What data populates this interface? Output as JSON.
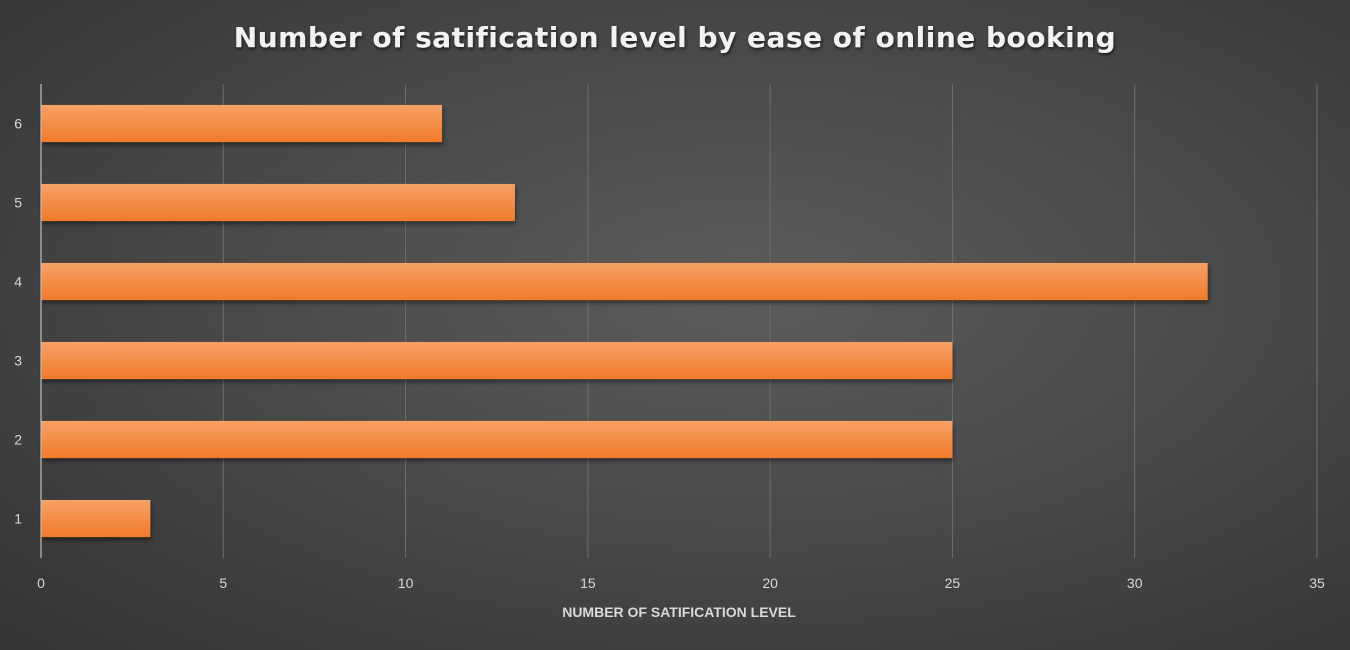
{
  "chart_data": {
    "type": "bar",
    "orientation": "horizontal",
    "title": "Number of satification level by ease of online booking",
    "xlabel": "NUMBER OF SATIFICATION LEVEL",
    "ylabel": "",
    "categories": [
      "1",
      "2",
      "3",
      "4",
      "5",
      "6"
    ],
    "values": [
      3,
      25,
      25,
      32,
      13,
      11
    ],
    "xlim": [
      0,
      35
    ],
    "xticks": [
      0,
      5,
      10,
      15,
      20,
      25,
      30,
      35
    ],
    "grid": true,
    "legend": "none",
    "bar_color": "#f07a2a",
    "bar_color_light": "#f7a166",
    "background_color": "#4a4a4a"
  }
}
